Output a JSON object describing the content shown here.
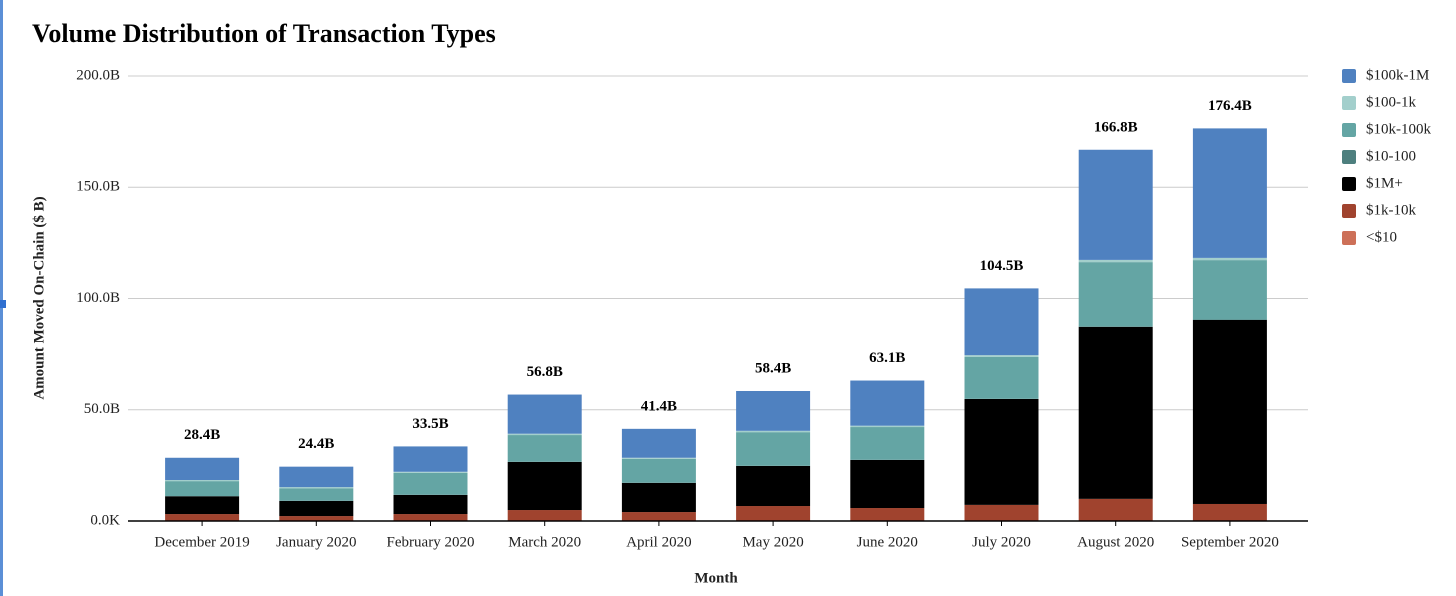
{
  "chart_data": {
    "type": "stacked_bar",
    "title": "Volume Distribution of Transaction Types",
    "x_label": "Month",
    "y_label": "Amount Moved On-Chain ($ B)",
    "categories": [
      "December 2019",
      "January 2020",
      "February 2020",
      "March 2020",
      "April 2020",
      "May 2020",
      "June 2020",
      "July 2020",
      "August 2020",
      "September 2020"
    ],
    "series": [
      {
        "name": "$100k-1M",
        "color": "#4f81c0",
        "values": [
          10.0,
          9.2,
          11.4,
          17.6,
          13.0,
          17.9,
          20.3,
          30.0,
          49.5,
          58.2
        ]
      },
      {
        "name": "$100-1k",
        "color": "#a3cfcc",
        "values": [
          0.5,
          0.5,
          0.5,
          0.6,
          0.5,
          0.6,
          0.6,
          0.8,
          1.0,
          1.0
        ]
      },
      {
        "name": "$10k-100k",
        "color": "#64a5a4",
        "values": [
          6.7,
          5.6,
          9.8,
          12.0,
          10.7,
          15.1,
          14.7,
          18.8,
          28.9,
          26.7
        ]
      },
      {
        "name": "$10-100",
        "color": "#4d7f7e",
        "values": [
          0.1,
          0.1,
          0.1,
          0.1,
          0.1,
          0.1,
          0.1,
          0.1,
          0.2,
          0.2
        ]
      },
      {
        "name": "$1M+",
        "color": "#000000",
        "values": [
          8.0,
          6.8,
          8.6,
          21.6,
          13.1,
          18.0,
          21.6,
          47.6,
          77.3,
          82.7
        ]
      },
      {
        "name": "$1k-10k",
        "color": "#a0432e",
        "values": [
          3.1,
          2.2,
          3.1,
          4.9,
          4.0,
          6.7,
          5.8,
          7.2,
          9.9,
          7.6
        ]
      },
      {
        "name": "<$10",
        "color": "#cd7058",
        "values": [
          0.02,
          0.02,
          0.02,
          0.03,
          0.02,
          0.03,
          0.03,
          0.04,
          0.05,
          0.05
        ]
      }
    ],
    "totals": {
      "values": [
        28.4,
        24.4,
        33.5,
        56.8,
        41.4,
        58.4,
        63.1,
        104.5,
        166.8,
        176.4
      ],
      "value_labels": [
        "28.4B",
        "24.4B",
        "33.5B",
        "56.8B",
        "41.4B",
        "58.4B",
        "63.1B",
        "104.5B",
        "166.8B",
        "176.4B"
      ]
    },
    "ylim": [
      0,
      200
    ],
    "yticks": [
      {
        "value": 0,
        "label": "0.0K"
      },
      {
        "value": 50,
        "label": "50.0B"
      },
      {
        "value": 100,
        "label": "100.0B"
      },
      {
        "value": 150,
        "label": "150.0B"
      },
      {
        "value": 200,
        "label": "200.0B"
      }
    ],
    "grid": true,
    "legend": "right"
  }
}
